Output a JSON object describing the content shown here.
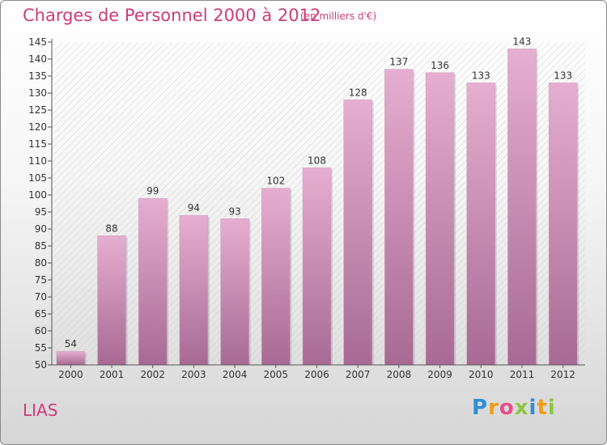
{
  "title": "Charges de Personnel 2000 à 2012",
  "subtitle": "(en milliers d'€)",
  "commune": "LIAS",
  "logo": {
    "text": "Proxiti",
    "letters": [
      {
        "ch": "P",
        "color": "#2f8fd6"
      },
      {
        "ch": "r",
        "color": "#f39c12"
      },
      {
        "ch": "o",
        "color": "#e74c8b"
      },
      {
        "ch": "x",
        "color": "#8cc63f"
      },
      {
        "ch": "i",
        "color": "#2f8fd6"
      },
      {
        "ch": "t",
        "color": "#f39c12"
      },
      {
        "ch": "i",
        "color": "#8cc63f"
      }
    ]
  },
  "colors": {
    "accent": "#cc3c7c",
    "bar_top": "#e6aed0",
    "bar_bottom": "#a86a94"
  },
  "chart_data": {
    "type": "bar",
    "categories": [
      "2000",
      "2001",
      "2002",
      "2003",
      "2004",
      "2005",
      "2006",
      "2007",
      "2008",
      "2009",
      "2010",
      "2011",
      "2012"
    ],
    "values": [
      54,
      88,
      99,
      94,
      93,
      102,
      108,
      128,
      137,
      136,
      133,
      143,
      133
    ],
    "ylim": [
      50,
      145
    ],
    "yticks": [
      50,
      55,
      60,
      65,
      70,
      75,
      80,
      85,
      90,
      95,
      100,
      105,
      110,
      115,
      120,
      125,
      130,
      135,
      140,
      145
    ],
    "grid": false,
    "data_labels": true
  }
}
